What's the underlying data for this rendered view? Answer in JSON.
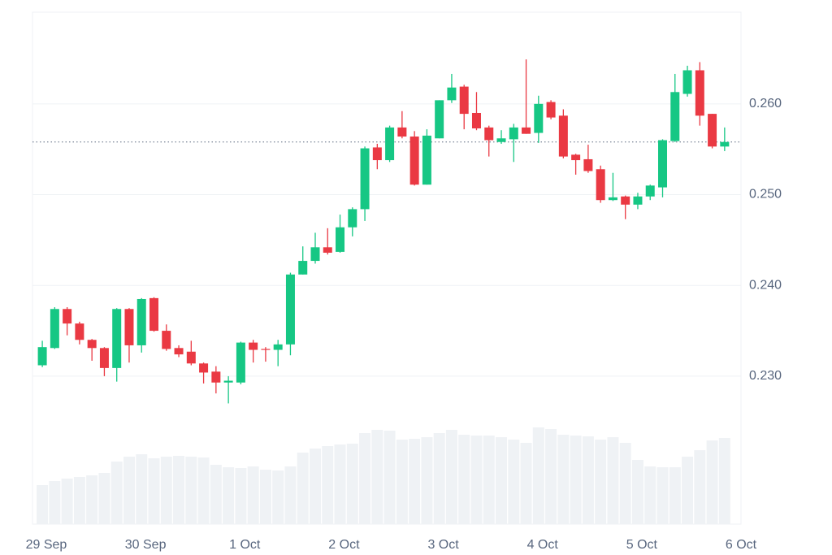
{
  "chart_data": {
    "type": "candlestick",
    "x": [
      -0.04,
      0.085,
      0.21,
      0.335,
      0.46,
      0.585,
      0.71,
      0.835,
      0.96,
      1.085,
      1.21,
      1.335,
      1.46,
      1.585,
      1.71,
      1.835,
      1.96,
      2.085,
      2.21,
      2.335,
      2.46,
      2.585,
      2.71,
      2.835,
      2.96,
      3.085,
      3.21,
      3.335,
      3.46,
      3.585,
      3.71,
      3.835,
      3.96,
      4.085,
      4.21,
      4.335,
      4.46,
      4.585,
      4.71,
      4.835,
      4.96,
      5.085,
      5.21,
      5.335,
      5.46,
      5.585,
      5.71,
      5.835,
      5.96,
      6.085,
      6.21,
      6.335,
      6.46,
      6.585,
      6.71,
      6.835
    ],
    "open": [
      0.2312,
      0.2331,
      0.2374,
      0.2358,
      0.234,
      0.2331,
      0.2309,
      0.2374,
      0.2334,
      0.2386,
      0.235,
      0.2331,
      0.2327,
      0.2314,
      0.2305,
      0.2293,
      0.2293,
      0.2337,
      0.233,
      0.2329,
      0.2335,
      0.2412,
      0.2427,
      0.2442,
      0.2437,
      0.2464,
      0.2484,
      0.2552,
      0.2538,
      0.2574,
      0.2564,
      0.2511,
      0.2562,
      0.2604,
      0.2619,
      0.259,
      0.2574,
      0.2558,
      0.2561,
      0.2574,
      0.2568,
      0.2602,
      0.2587,
      0.2544,
      0.2539,
      0.2528,
      0.2494,
      0.2498,
      0.2489,
      0.2498,
      0.2508,
      0.2559,
      0.2611,
      0.2637,
      0.2589,
      0.2553
    ],
    "high": [
      0.2339,
      0.2376,
      0.2376,
      0.236,
      0.2341,
      0.2332,
      0.2375,
      0.2375,
      0.2386,
      0.2387,
      0.2357,
      0.2334,
      0.2339,
      0.2315,
      0.2311,
      0.23,
      0.2338,
      0.234,
      0.2332,
      0.234,
      0.2414,
      0.2443,
      0.2458,
      0.2463,
      0.2478,
      0.2486,
      0.2553,
      0.2556,
      0.2576,
      0.2592,
      0.257,
      0.2572,
      0.2604,
      0.2633,
      0.2621,
      0.2613,
      0.2576,
      0.2571,
      0.2578,
      0.2649,
      0.2609,
      0.2604,
      0.2594,
      0.2545,
      0.2555,
      0.2532,
      0.2524,
      0.2499,
      0.2502,
      0.2511,
      0.2561,
      0.2633,
      0.2642,
      0.2646,
      0.2589,
      0.2574
    ],
    "low": [
      0.231,
      0.233,
      0.2345,
      0.2335,
      0.2317,
      0.23,
      0.2294,
      0.2315,
      0.2326,
      0.2349,
      0.2328,
      0.2321,
      0.2312,
      0.2292,
      0.2281,
      0.227,
      0.2291,
      0.2315,
      0.2316,
      0.2311,
      0.2323,
      0.2412,
      0.2424,
      0.2434,
      0.2436,
      0.2454,
      0.2471,
      0.2528,
      0.2536,
      0.2562,
      0.251,
      0.2511,
      0.2562,
      0.2601,
      0.2572,
      0.2571,
      0.2542,
      0.2556,
      0.2536,
      0.2567,
      0.2557,
      0.2583,
      0.254,
      0.2522,
      0.2524,
      0.2491,
      0.2493,
      0.2473,
      0.2484,
      0.2494,
      0.2497,
      0.2558,
      0.2608,
      0.2576,
      0.2551,
      0.2548
    ],
    "close": [
      0.2332,
      0.2374,
      0.2358,
      0.234,
      0.2331,
      0.2309,
      0.2374,
      0.2334,
      0.2385,
      0.235,
      0.233,
      0.2324,
      0.2314,
      0.2304,
      0.2293,
      0.2295,
      0.2337,
      0.2329,
      0.2329,
      0.2335,
      0.2412,
      0.2427,
      0.2442,
      0.2436,
      0.2464,
      0.2484,
      0.2551,
      0.2538,
      0.2574,
      0.2564,
      0.2511,
      0.2565,
      0.2604,
      0.2618,
      0.2589,
      0.2573,
      0.256,
      0.2562,
      0.2574,
      0.2567,
      0.26,
      0.2585,
      0.2542,
      0.2538,
      0.2526,
      0.2494,
      0.2497,
      0.2489,
      0.2498,
      0.251,
      0.256,
      0.2613,
      0.2637,
      0.2587,
      0.2553,
      0.2558
    ],
    "volume": [
      48,
      53,
      56,
      58,
      60,
      63,
      77,
      83,
      86,
      81,
      83,
      84,
      83,
      82,
      73,
      70,
      69,
      71,
      67,
      66,
      71,
      88,
      93,
      96,
      98,
      99,
      112,
      116,
      115,
      104,
      105,
      107,
      112,
      116,
      110,
      109,
      109,
      107,
      104,
      100,
      119,
      117,
      110,
      109,
      108,
      104,
      107,
      100,
      79,
      71,
      70,
      70,
      83,
      91,
      103,
      106
    ],
    "volume_lim": [
      0,
      630
    ],
    "last_price": 0.2558,
    "up_color": "#16c784",
    "down_color": "#ea3943",
    "volume_color": "#eff2f5",
    "xlim": [
      -0.139,
      7.0
    ],
    "xticks": [
      {
        "value": 0,
        "label": "29 Sep"
      },
      {
        "value": 1,
        "label": "30 Sep"
      },
      {
        "value": 2,
        "label": "1 Oct"
      },
      {
        "value": 3,
        "label": "2 Oct"
      },
      {
        "value": 4,
        "label": "3 Oct"
      },
      {
        "value": 5,
        "label": "4 Oct"
      },
      {
        "value": 6,
        "label": "5 Oct"
      },
      {
        "value": 7,
        "label": "6 Oct"
      }
    ],
    "ylim": [
      0.2137,
      0.2701
    ],
    "yticks": [
      {
        "value": 0.23,
        "label": "0.230"
      },
      {
        "value": 0.24,
        "label": "0.240"
      },
      {
        "value": 0.25,
        "label": "0.250"
      },
      {
        "value": 0.26,
        "label": "0.260"
      }
    ],
    "grid": true
  }
}
